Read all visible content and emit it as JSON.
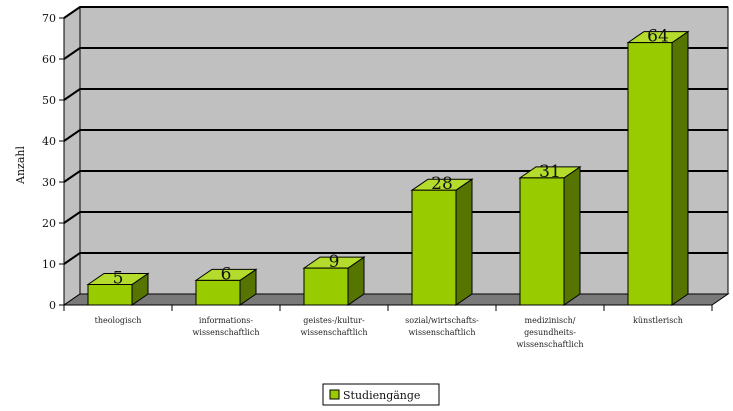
{
  "chart_data": {
    "type": "bar",
    "title": "",
    "xlabel": "",
    "ylabel": "Anzahl",
    "ylim": [
      0,
      70
    ],
    "yticks": [
      0,
      10,
      20,
      30,
      40,
      50,
      60,
      70
    ],
    "grid": true,
    "legend_position": "bottom-center",
    "categories": [
      "theologisch",
      "informations-\nwissenschaftlich",
      "geistes-/kultur-\nwissenschaftlich",
      "sozial/wirtschafts-\nwissenschaftlich",
      "medizinisch/\ngesundheits-\nwissenschaftlich",
      "künstlerisch"
    ],
    "series": [
      {
        "name": "Studiengänge",
        "values": [
          5,
          6,
          9,
          28,
          31,
          64
        ]
      }
    ],
    "colors": {
      "bar_front": "#99cc00",
      "bar_side": "#567400",
      "bar_top": "#b4dc2c",
      "wall": "#c0c0c0",
      "floor": "#7a7a7a",
      "gridline": "#000000"
    }
  }
}
